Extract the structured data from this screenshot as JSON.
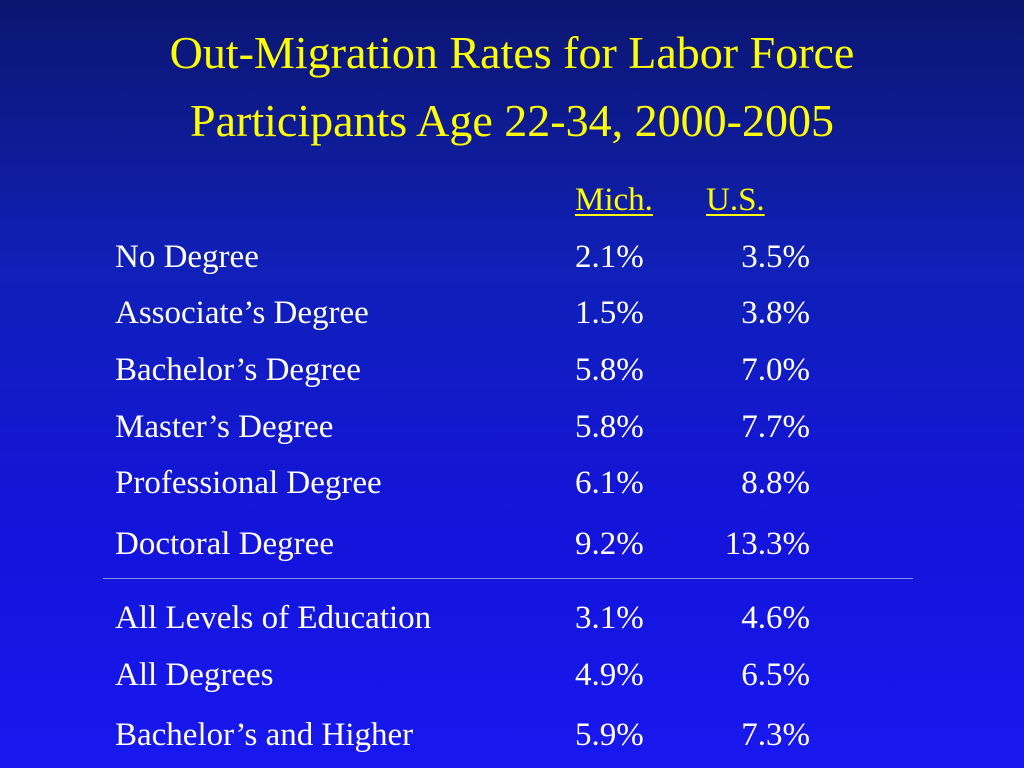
{
  "title": {
    "lines": [
      "Out-Migration Rates for Labor Force",
      "Participants Age 22-34, 2000-2005"
    ]
  },
  "table": {
    "header": [
      "Mich.",
      "U.S."
    ],
    "rows": [
      [
        "No Degree",
        "2.1%",
        "3.5%"
      ],
      [
        "Associate’s Degree",
        "1.5%",
        "3.8%"
      ],
      [
        "Bachelor’s Degree",
        "5.8%",
        "7.0%"
      ],
      [
        "Master’s Degree",
        "5.8%",
        "7.7%"
      ],
      [
        "Professional Degree",
        "6.1%",
        "8.8%"
      ],
      [
        "Doctoral Degree",
        "9.2%",
        "13.3%"
      ]
    ],
    "summary_rows": [
      [
        "All Levels of Education",
        "3.1%",
        "4.6%"
      ],
      [
        "All Degrees",
        "4.9%",
        "6.5%"
      ],
      [
        "Bachelor’s and Higher",
        "5.9%",
        "7.3%"
      ]
    ]
  }
}
